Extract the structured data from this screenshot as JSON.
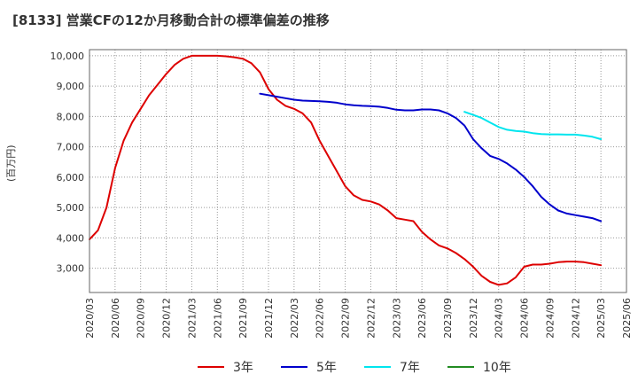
{
  "title": "[8133]  営業CFの12か月移動合計の標準偏差の推移",
  "chart_data": {
    "type": "line",
    "ylabel": "(百万円)",
    "ylim": [
      2200,
      10200
    ],
    "yticks": [
      3000,
      4000,
      5000,
      6000,
      7000,
      8000,
      9000,
      10000
    ],
    "ytick_labels": [
      "3,000",
      "4,000",
      "5,000",
      "6,000",
      "7,000",
      "8,000",
      "9,000",
      "10,000"
    ],
    "xticks": [
      "2020/03",
      "2020/06",
      "2020/09",
      "2020/12",
      "2021/03",
      "2021/06",
      "2021/09",
      "2021/12",
      "2022/03",
      "2022/06",
      "2022/09",
      "2022/12",
      "2023/03",
      "2023/06",
      "2023/09",
      "2023/12",
      "2024/03",
      "2024/06",
      "2024/09",
      "2024/12",
      "2025/03",
      "2025/06"
    ],
    "x_months": [
      "2020/03",
      "2020/04",
      "2020/05",
      "2020/06",
      "2020/07",
      "2020/08",
      "2020/09",
      "2020/10",
      "2020/11",
      "2020/12",
      "2021/01",
      "2021/02",
      "2021/03",
      "2021/04",
      "2021/05",
      "2021/06",
      "2021/07",
      "2021/08",
      "2021/09",
      "2021/10",
      "2021/11",
      "2021/12",
      "2022/01",
      "2022/02",
      "2022/03",
      "2022/04",
      "2022/05",
      "2022/06",
      "2022/07",
      "2022/08",
      "2022/09",
      "2022/10",
      "2022/11",
      "2022/12",
      "2023/01",
      "2023/02",
      "2023/03",
      "2023/04",
      "2023/05",
      "2023/06",
      "2023/07",
      "2023/08",
      "2023/09",
      "2023/10",
      "2023/11",
      "2023/12",
      "2024/01",
      "2024/02",
      "2024/03",
      "2024/04",
      "2024/05",
      "2024/06",
      "2024/07",
      "2024/08",
      "2024/09",
      "2024/10",
      "2024/11",
      "2024/12",
      "2025/01",
      "2025/02",
      "2025/03"
    ],
    "grid": true,
    "legend_position": "bottom",
    "series": [
      {
        "name": "3年",
        "color": "#dd0000",
        "values": [
          3950,
          4250,
          5000,
          6300,
          7200,
          7800,
          8250,
          8700,
          9050,
          9400,
          9700,
          9900,
          10000,
          10000,
          10000,
          10000,
          9980,
          9950,
          9900,
          9750,
          9450,
          8900,
          8550,
          8350,
          8250,
          8100,
          7800,
          7200,
          6700,
          6200,
          5700,
          5400,
          5250,
          5200,
          5100,
          4900,
          4650,
          4600,
          4550,
          4200,
          3950,
          3750,
          3650,
          3500,
          3300,
          3050,
          2750,
          2550,
          2450,
          2500,
          2700,
          3050,
          3120,
          3120,
          3150,
          3200,
          3220,
          3220,
          3200,
          3150,
          3100
        ]
      },
      {
        "name": "5年",
        "color": "#0000cc",
        "values": [
          null,
          null,
          null,
          null,
          null,
          null,
          null,
          null,
          null,
          null,
          null,
          null,
          null,
          null,
          null,
          null,
          null,
          null,
          null,
          null,
          8750,
          8700,
          8650,
          8600,
          8550,
          8520,
          8510,
          8500,
          8480,
          8450,
          8400,
          8370,
          8350,
          8340,
          8320,
          8280,
          8220,
          8200,
          8200,
          8230,
          8230,
          8200,
          8100,
          7950,
          7700,
          7250,
          6950,
          6700,
          6600,
          6450,
          6250,
          6000,
          5700,
          5350,
          5100,
          4900,
          4800,
          4750,
          4700,
          4650,
          4550
        ]
      },
      {
        "name": "7年",
        "color": "#00e5ee",
        "values": [
          null,
          null,
          null,
          null,
          null,
          null,
          null,
          null,
          null,
          null,
          null,
          null,
          null,
          null,
          null,
          null,
          null,
          null,
          null,
          null,
          null,
          null,
          null,
          null,
          null,
          null,
          null,
          null,
          null,
          null,
          null,
          null,
          null,
          null,
          null,
          null,
          null,
          null,
          null,
          null,
          null,
          null,
          null,
          null,
          8150,
          8050,
          7950,
          7800,
          7650,
          7560,
          7520,
          7500,
          7450,
          7420,
          7410,
          7410,
          7400,
          7400,
          7370,
          7330,
          7250
        ]
      },
      {
        "name": "10年",
        "color": "#228b22",
        "values": []
      }
    ]
  }
}
